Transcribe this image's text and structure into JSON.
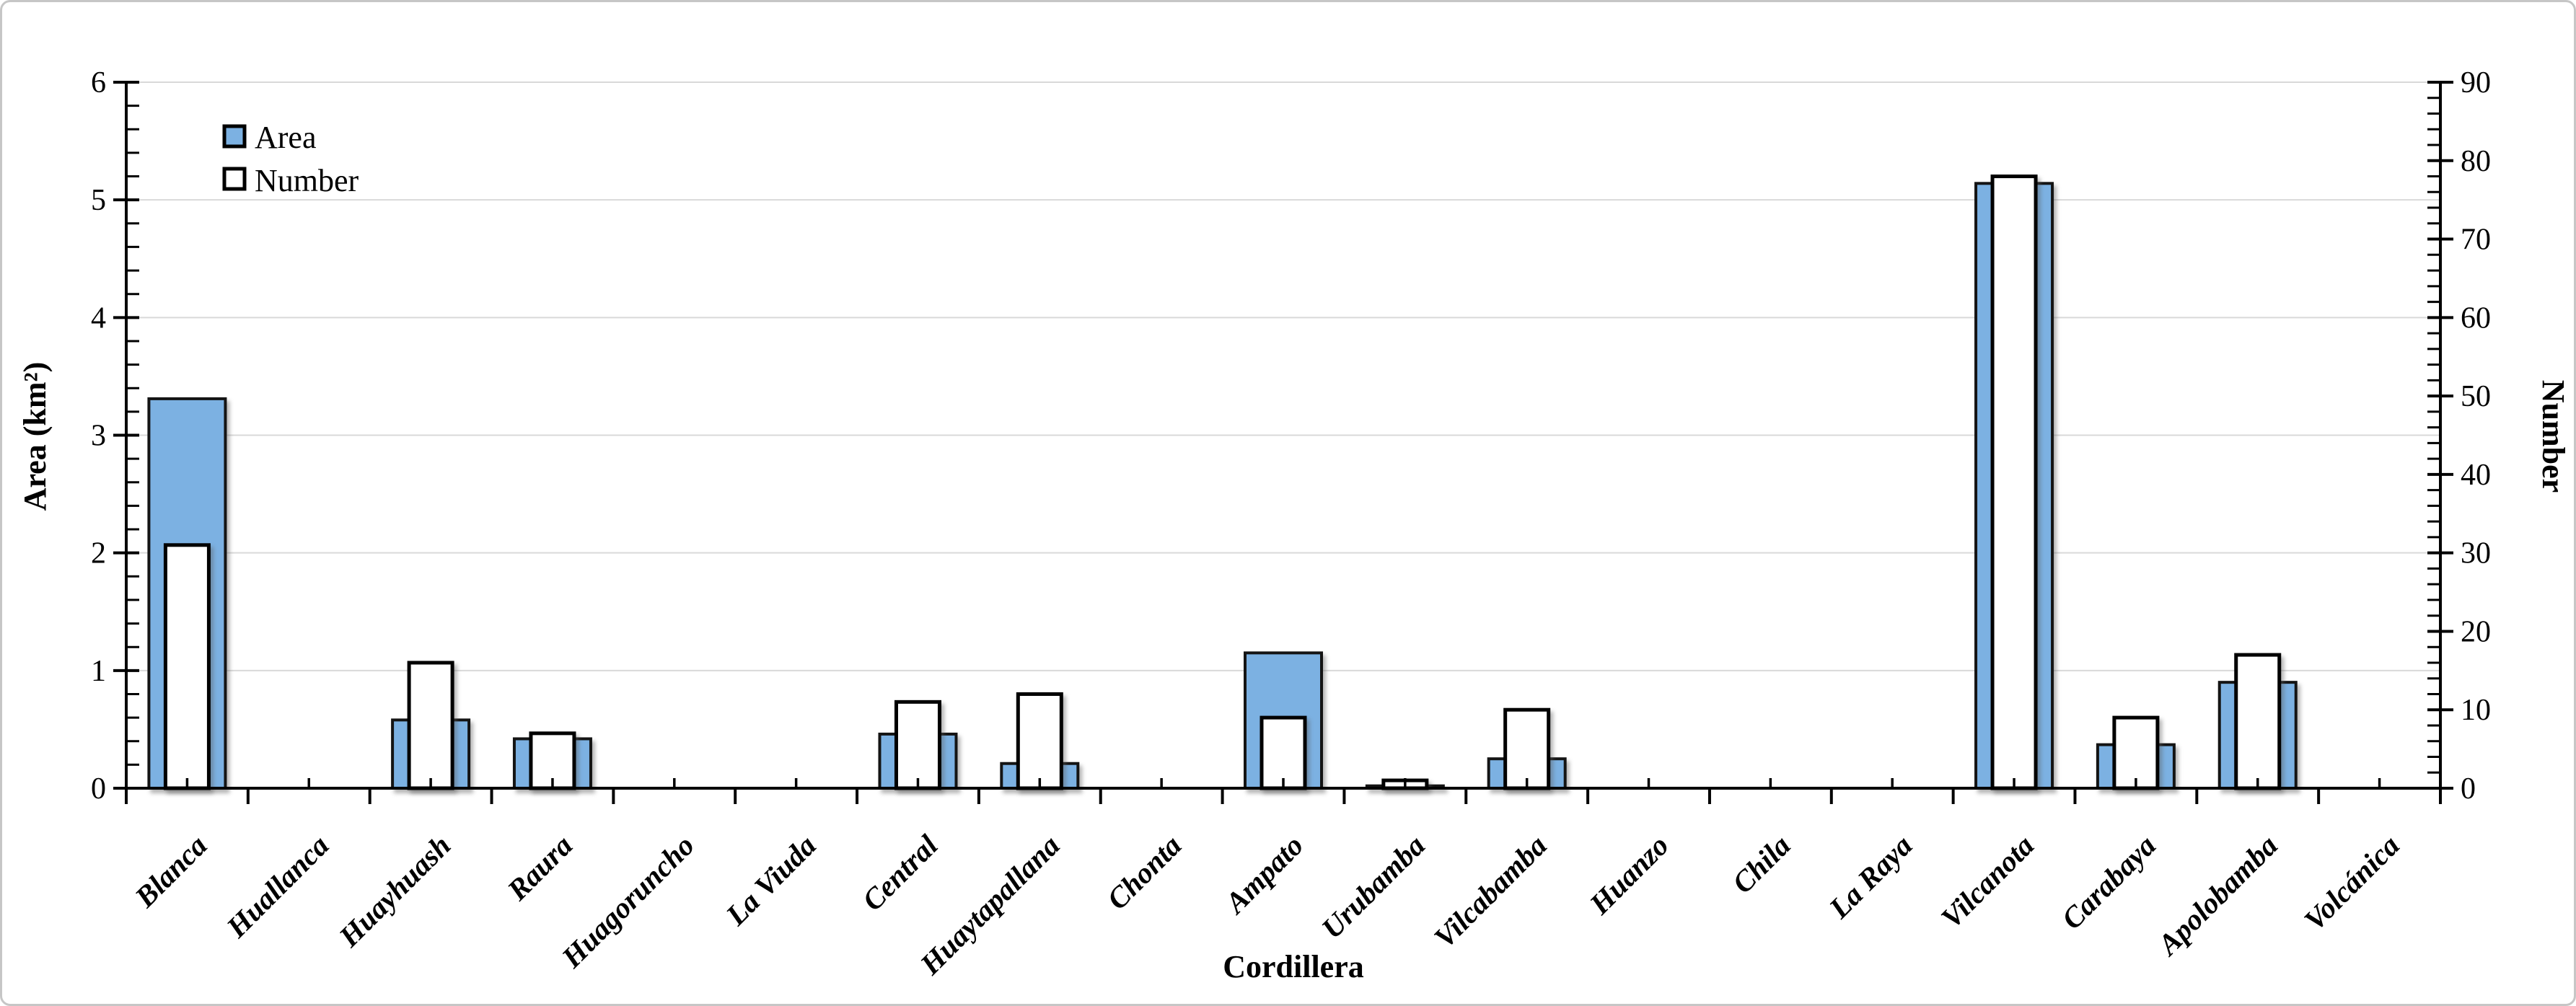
{
  "figure": {
    "background": "#ffffff",
    "border_color": "#c6c6c6"
  },
  "chart_data": {
    "type": "bar",
    "title": "",
    "xlabel": "Cordillera",
    "ylabel_left": "Area (km²)",
    "ylabel_right": "Number",
    "categories": [
      "Blanca",
      "Huallanca",
      "Huayhuash",
      "Raura",
      "Huagoruncho",
      "La Viuda",
      "Central",
      "Huaytapallana",
      "Chonta",
      "Ampato",
      "Urubamba",
      "Vilcabamba",
      "Huanzo",
      "Chila",
      "La Raya",
      "Vilcanota",
      "Carabaya",
      "Apolobamba",
      "Volcánica"
    ],
    "series": [
      {
        "name": "Area",
        "axis": "left",
        "color": "#7CB1E2",
        "border": "#141414",
        "values": [
          3.31,
          0,
          0.58,
          0.42,
          0,
          0,
          0.46,
          0.21,
          0,
          1.15,
          0.02,
          0.25,
          0,
          0,
          0,
          5.14,
          0.37,
          0.9,
          0
        ]
      },
      {
        "name": "Number",
        "axis": "right",
        "color": "#FFFFFF",
        "border": "#000000",
        "values": [
          31,
          0,
          16,
          7,
          0,
          0,
          11,
          12,
          0,
          9,
          1,
          10,
          0,
          0,
          0,
          78,
          9,
          17,
          0
        ]
      }
    ],
    "axes": {
      "left": {
        "min": 0,
        "max": 6,
        "major": 1,
        "minor": 0.2,
        "tick_labels": [
          "0",
          "1",
          "2",
          "3",
          "4",
          "5",
          "6"
        ]
      },
      "right": {
        "min": 0,
        "max": 90,
        "major": 10,
        "minor": 2,
        "tick_labels": [
          "0",
          "10",
          "20",
          "30",
          "40",
          "50",
          "60",
          "70",
          "80",
          "90"
        ]
      }
    },
    "legend": {
      "position": "top-left-inside",
      "items": [
        {
          "label": "Area",
          "fill": "#7CB1E2"
        },
        {
          "label": "Number",
          "fill": "#FFFFFF"
        }
      ]
    },
    "grid": {
      "horizontal_major": true,
      "color": "#D9D9D9"
    }
  }
}
